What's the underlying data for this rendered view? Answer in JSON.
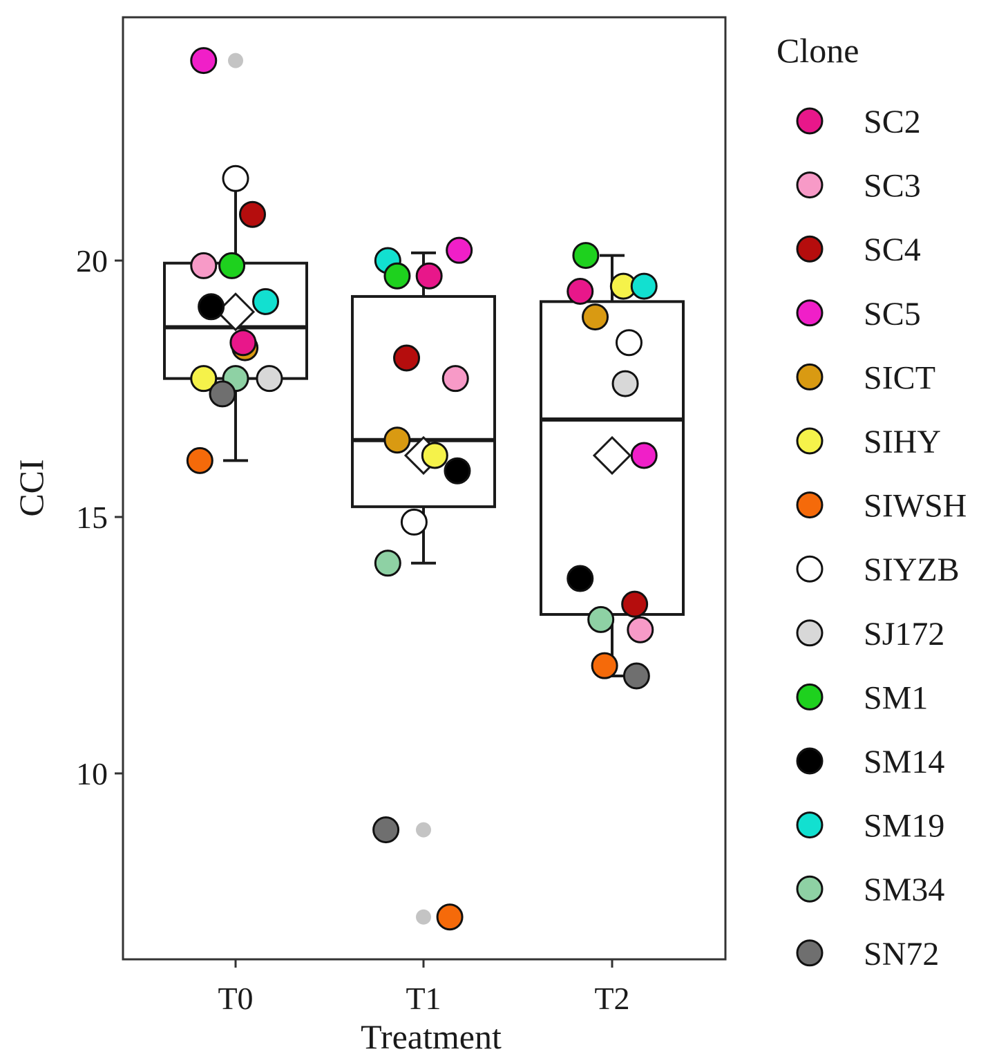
{
  "chart_data": {
    "type": "boxplot",
    "xlabel": "Treatment",
    "ylabel": "CCI",
    "categories": [
      "T0",
      "T1",
      "T2"
    ],
    "ylim": [
      6.4,
      24.8
    ],
    "yticks": [
      10,
      15,
      20
    ],
    "grid": false,
    "legend": {
      "title": "Clone",
      "placement": "right",
      "items": [
        {
          "name": "SC2",
          "color": "#E8178A"
        },
        {
          "name": "SC3",
          "color": "#F79AC7"
        },
        {
          "name": "SC4",
          "color": "#B50D0D"
        },
        {
          "name": "SC5",
          "color": "#F01FC8"
        },
        {
          "name": "SICT",
          "color": "#D99A12"
        },
        {
          "name": "SIHY",
          "color": "#F5F24A"
        },
        {
          "name": "SIWSH",
          "color": "#F56A0A"
        },
        {
          "name": "SIYZB",
          "color": "#FFFFFF"
        },
        {
          "name": "SJ172",
          "color": "#D8D8D8"
        },
        {
          "name": "SM1",
          "color": "#1ED11E"
        },
        {
          "name": "SM14",
          "color": "#000000"
        },
        {
          "name": "SM19",
          "color": "#12E0D0"
        },
        {
          "name": "SM34",
          "color": "#8ED1A4"
        },
        {
          "name": "SN72",
          "color": "#6F6F6F"
        }
      ]
    },
    "boxes": [
      {
        "category": "T0",
        "q1": 17.7,
        "median": 18.7,
        "q3": 19.95,
        "whisker_low": 16.1,
        "whisker_high": 21.6,
        "mean": 19.0
      },
      {
        "category": "T1",
        "q1": 15.2,
        "median": 16.5,
        "q3": 19.3,
        "whisker_low": 14.1,
        "whisker_high": 20.15,
        "mean": 16.2
      },
      {
        "category": "T2",
        "q1": 13.1,
        "median": 16.9,
        "q3": 19.2,
        "whisker_low": 11.9,
        "whisker_high": 20.1,
        "mean": 16.2
      }
    ],
    "outliers": [
      {
        "category": "T0",
        "y": 23.9
      },
      {
        "category": "T1",
        "y": 8.9
      },
      {
        "category": "T1",
        "y": 7.2
      }
    ],
    "points": [
      {
        "category": "T0",
        "clone": "SC5",
        "y": 23.9,
        "jitter": -0.17
      },
      {
        "category": "T0",
        "clone": "SIYZB",
        "y": 21.6,
        "jitter": 0.0
      },
      {
        "category": "T0",
        "clone": "SC4",
        "y": 20.9,
        "jitter": 0.09
      },
      {
        "category": "T0",
        "clone": "SC3",
        "y": 19.9,
        "jitter": -0.17
      },
      {
        "category": "T0",
        "clone": "SM1",
        "y": 19.9,
        "jitter": -0.02
      },
      {
        "category": "T0",
        "clone": "SM19",
        "y": 19.2,
        "jitter": 0.16
      },
      {
        "category": "T0",
        "clone": "SM14",
        "y": 19.1,
        "jitter": -0.13
      },
      {
        "category": "T0",
        "clone": "SICT",
        "y": 18.3,
        "jitter": 0.05
      },
      {
        "category": "T0",
        "clone": "SC2",
        "y": 18.4,
        "jitter": 0.04
      },
      {
        "category": "T0",
        "clone": "SIHY",
        "y": 17.7,
        "jitter": -0.17
      },
      {
        "category": "T0",
        "clone": "SM34",
        "y": 17.7,
        "jitter": 0.0
      },
      {
        "category": "T0",
        "clone": "SJ172",
        "y": 17.7,
        "jitter": 0.18
      },
      {
        "category": "T0",
        "clone": "SN72",
        "y": 17.4,
        "jitter": -0.07
      },
      {
        "category": "T0",
        "clone": "SIWSH",
        "y": 16.1,
        "jitter": -0.19
      },
      {
        "category": "T1",
        "clone": "SC5",
        "y": 20.2,
        "jitter": 0.19
      },
      {
        "category": "T1",
        "clone": "SM19",
        "y": 20.0,
        "jitter": -0.19
      },
      {
        "category": "T1",
        "clone": "SM1",
        "y": 19.7,
        "jitter": -0.14
      },
      {
        "category": "T1",
        "clone": "SC2",
        "y": 19.7,
        "jitter": 0.03
      },
      {
        "category": "T1",
        "clone": "SC4",
        "y": 18.1,
        "jitter": -0.09
      },
      {
        "category": "T1",
        "clone": "SC3",
        "y": 17.7,
        "jitter": 0.17
      },
      {
        "category": "T1",
        "clone": "SICT",
        "y": 16.5,
        "jitter": -0.14
      },
      {
        "category": "T1",
        "clone": "SIHY",
        "y": 16.2,
        "jitter": 0.06
      },
      {
        "category": "T1",
        "clone": "SM14",
        "y": 15.9,
        "jitter": 0.18
      },
      {
        "category": "T1",
        "clone": "SIYZB",
        "y": 14.9,
        "jitter": -0.05
      },
      {
        "category": "T1",
        "clone": "SM34",
        "y": 14.1,
        "jitter": -0.19
      },
      {
        "category": "T1",
        "clone": "SN72",
        "y": 8.9,
        "jitter": -0.2
      },
      {
        "category": "T1",
        "clone": "SIWSH",
        "y": 7.2,
        "jitter": 0.14
      },
      {
        "category": "T2",
        "clone": "SM1",
        "y": 20.1,
        "jitter": -0.14
      },
      {
        "category": "T2",
        "clone": "SC2",
        "y": 19.4,
        "jitter": -0.17
      },
      {
        "category": "T2",
        "clone": "SIHY",
        "y": 19.5,
        "jitter": 0.06
      },
      {
        "category": "T2",
        "clone": "SM19",
        "y": 19.5,
        "jitter": 0.17
      },
      {
        "category": "T2",
        "clone": "SICT",
        "y": 18.9,
        "jitter": -0.09
      },
      {
        "category": "T2",
        "clone": "SIYZB",
        "y": 18.4,
        "jitter": 0.09
      },
      {
        "category": "T2",
        "clone": "SJ172",
        "y": 17.6,
        "jitter": 0.07
      },
      {
        "category": "T2",
        "clone": "SC5",
        "y": 16.2,
        "jitter": 0.17
      },
      {
        "category": "T2",
        "clone": "SM14",
        "y": 13.8,
        "jitter": -0.17
      },
      {
        "category": "T2",
        "clone": "SC4",
        "y": 13.3,
        "jitter": 0.12
      },
      {
        "category": "T2",
        "clone": "SM34",
        "y": 13.0,
        "jitter": -0.06
      },
      {
        "category": "T2",
        "clone": "SC3",
        "y": 12.8,
        "jitter": 0.15
      },
      {
        "category": "T2",
        "clone": "SIWSH",
        "y": 12.1,
        "jitter": -0.04
      },
      {
        "category": "T2",
        "clone": "SN72",
        "y": 11.9,
        "jitter": 0.13
      }
    ]
  }
}
